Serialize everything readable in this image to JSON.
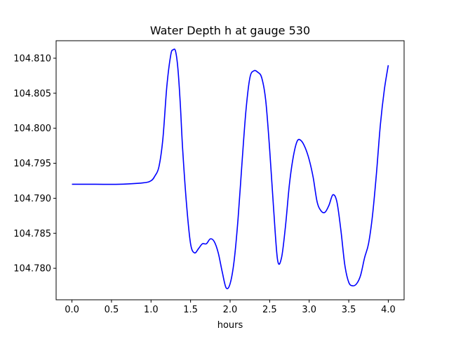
{
  "chart_data": {
    "type": "line",
    "title": "Water Depth h at gauge 530",
    "xlabel": "hours",
    "ylabel": "",
    "xlim": [
      -0.2,
      4.2
    ],
    "ylim": [
      104.7755,
      104.8125
    ],
    "grid": false,
    "xticks": [
      0.0,
      0.5,
      1.0,
      1.5,
      2.0,
      2.5,
      3.0,
      3.5,
      4.0
    ],
    "xtick_labels": [
      "0.0",
      "0.5",
      "1.0",
      "1.5",
      "2.0",
      "2.5",
      "3.0",
      "3.5",
      "4.0"
    ],
    "yticks": [
      104.78,
      104.785,
      104.79,
      104.795,
      104.8,
      104.805,
      104.81
    ],
    "ytick_labels": [
      "104.780",
      "104.785",
      "104.790",
      "104.795",
      "104.800",
      "104.805",
      "104.810"
    ],
    "series": [
      {
        "color": "#0000ff",
        "x": [
          0.0,
          0.3,
          0.6,
          0.9,
          1.0,
          1.05,
          1.1,
          1.15,
          1.2,
          1.25,
          1.28,
          1.31,
          1.34,
          1.37,
          1.4,
          1.45,
          1.5,
          1.55,
          1.6,
          1.65,
          1.7,
          1.75,
          1.8,
          1.85,
          1.9,
          1.95,
          2.0,
          2.05,
          2.1,
          2.15,
          2.2,
          2.25,
          2.3,
          2.35,
          2.4,
          2.45,
          2.5,
          2.55,
          2.6,
          2.65,
          2.7,
          2.75,
          2.8,
          2.85,
          2.9,
          2.95,
          3.0,
          3.05,
          3.1,
          3.15,
          3.2,
          3.25,
          3.3,
          3.35,
          3.4,
          3.45,
          3.5,
          3.55,
          3.6,
          3.65,
          3.7,
          3.75,
          3.8,
          3.85,
          3.9,
          3.95,
          4.0
        ],
        "y": [
          104.792,
          104.792,
          104.792,
          104.7922,
          104.7925,
          104.7932,
          104.7945,
          104.7985,
          104.806,
          104.8105,
          104.8112,
          104.811,
          104.8085,
          104.8035,
          104.797,
          104.789,
          104.7835,
          104.7822,
          104.7828,
          104.7835,
          104.7835,
          104.7842,
          104.7838,
          104.7822,
          104.7795,
          104.7772,
          104.7778,
          104.781,
          104.787,
          104.795,
          104.8025,
          104.8072,
          104.8082,
          104.808,
          104.8072,
          104.804,
          104.797,
          104.7885,
          104.7812,
          104.7815,
          104.786,
          104.792,
          104.796,
          104.7982,
          104.7982,
          104.7972,
          104.7955,
          104.793,
          104.7895,
          104.7882,
          104.788,
          104.789,
          104.7905,
          104.7895,
          104.7855,
          104.7805,
          104.778,
          104.7775,
          104.7778,
          104.779,
          104.7815,
          104.7835,
          104.7875,
          104.7935,
          104.8005,
          104.8055,
          104.809
        ]
      }
    ]
  }
}
